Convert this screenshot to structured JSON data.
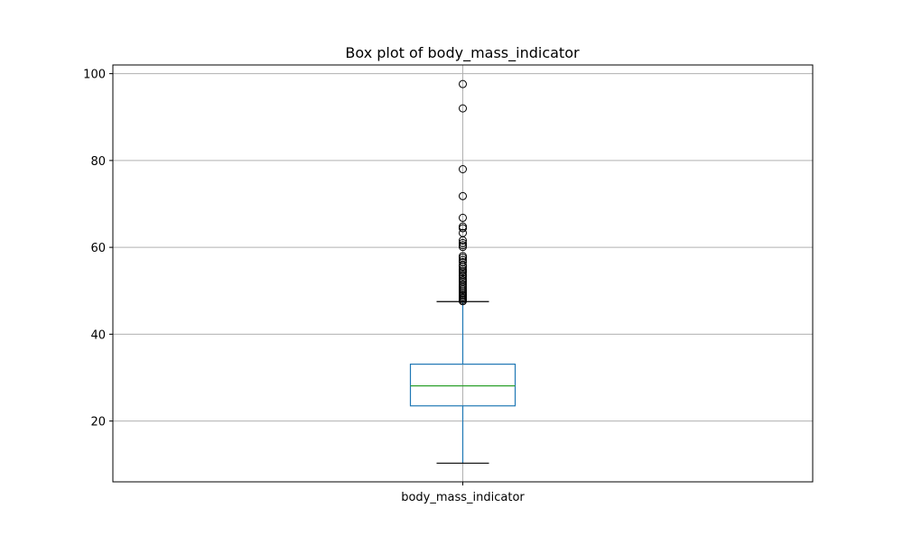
{
  "chart_data": {
    "type": "box",
    "title": "Box plot of body_mass_indicator",
    "xlabel": "",
    "ylabel": "",
    "categories": [
      "body_mass_indicator"
    ],
    "ylim": [
      6,
      102
    ],
    "yticks": [
      20,
      40,
      60,
      80,
      100
    ],
    "grid": true,
    "legend": "none",
    "boxes": [
      {
        "category": "body_mass_indicator",
        "whisker_low": 10.3,
        "q1": 23.5,
        "median": 28.1,
        "q3": 33.1,
        "whisker_high": 47.5,
        "outliers": [
          97.6,
          92.0,
          78.0,
          71.8,
          66.8,
          64.8,
          64.4,
          63.3,
          61.6,
          61.0,
          60.5,
          60.1,
          58.0,
          57.6,
          57.1,
          56.6,
          55.9,
          55.5,
          55.0,
          54.6,
          54.2,
          53.7,
          53.3,
          52.8,
          52.4,
          52.0,
          51.5,
          51.1,
          50.7,
          50.3,
          49.9,
          49.5,
          49.1,
          48.8,
          48.5,
          48.2,
          47.9,
          47.6
        ]
      }
    ],
    "colors": {
      "box": "#1f77b4",
      "median": "#2ca02c",
      "whisker_cap": "#000000",
      "outlier_edge": "#000000",
      "grid": "#b0b0b0",
      "axes": "#000000"
    }
  }
}
